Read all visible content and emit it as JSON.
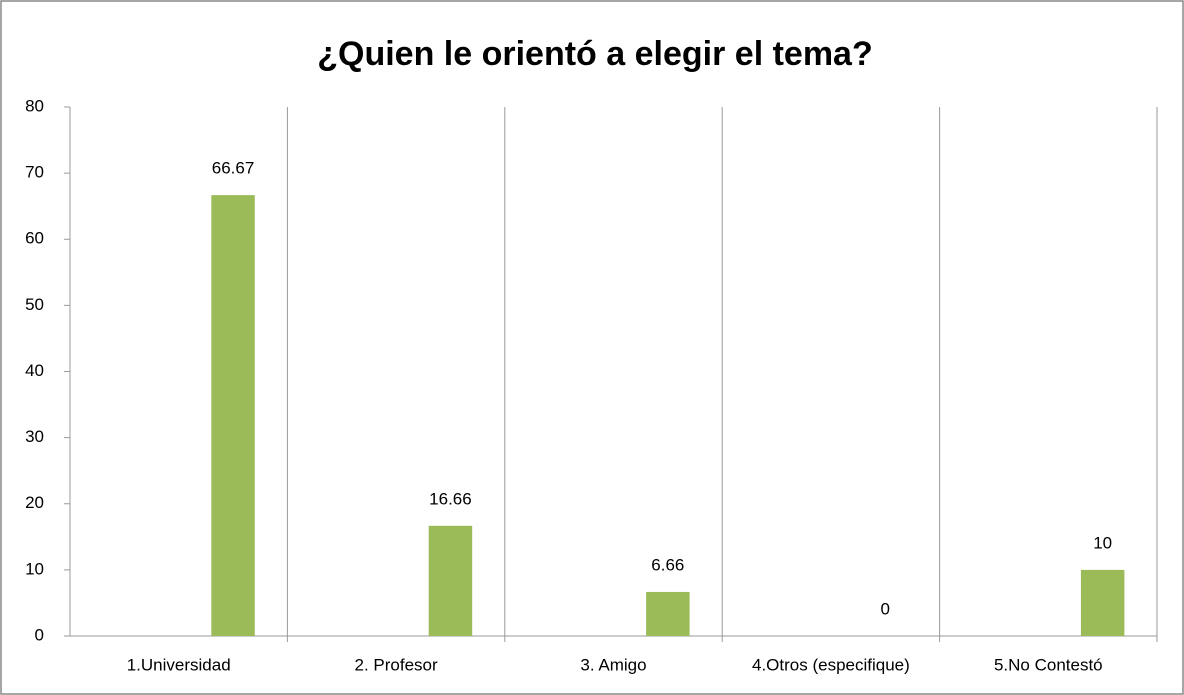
{
  "chart_data": {
    "type": "bar",
    "title": "¿Quien le orientó a elegir el tema?",
    "categories": [
      "1.Universidad",
      "2. Profesor",
      "3. Amigo",
      "4.Otros (especifique)",
      "5.No Contestó"
    ],
    "values": [
      66.67,
      16.66,
      6.66,
      0,
      10
    ],
    "color": "#9bbb59",
    "ylim": [
      0,
      80
    ],
    "yticks": [
      0,
      10,
      20,
      30,
      40,
      50,
      60,
      70,
      80
    ]
  }
}
